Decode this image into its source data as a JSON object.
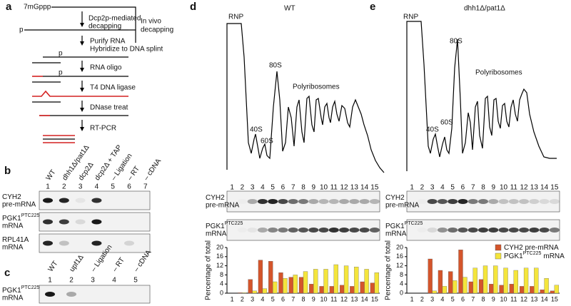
{
  "panel_a": {
    "label": "a",
    "cap": "7mGppp",
    "dcp2_line1": "Dcp2p-mediated",
    "dcp2_line2": "decapping",
    "invivo_line1": "In vivo",
    "invivo_line2": "decapping",
    "phosphates": [
      "p",
      "p",
      "p"
    ],
    "steps": [
      "Purify RNA",
      "Hybridize to DNA splint",
      "RNA oligo",
      "T4 DNA ligase",
      "DNase treat",
      "RT-PCR"
    ]
  },
  "panel_b": {
    "label": "b",
    "columns": [
      "WT",
      "dhh1Δ/pat1Δ",
      "dcp2Δ",
      "dcp2Δ + TAP",
      "– Ligation",
      "– RT",
      "– cDNA"
    ],
    "lanes": [
      "1",
      "2",
      "3",
      "4",
      "5",
      "6",
      "7"
    ],
    "rows": [
      {
        "name": "CYH2",
        "line2": "pre-mRNA"
      },
      {
        "name": "PGK1",
        "sup": "PTC225",
        "line2": "mRNA"
      },
      {
        "name": "RPL41A",
        "line2": "mRNA"
      }
    ]
  },
  "panel_c": {
    "label": "c",
    "columns": [
      "WT",
      "upf1Δ",
      "– Ligation",
      "– RT",
      "– cDNA"
    ],
    "lanes": [
      "1",
      "2",
      "3",
      "4",
      "5"
    ],
    "rows": [
      {
        "name": "PGK1",
        "sup": "PTC225",
        "line2": "mRNA"
      }
    ]
  },
  "chart_data": [
    {
      "type": "bar",
      "panel_label": "d",
      "title": "WT",
      "profile_labels": {
        "rnp": "RNP",
        "s40": "40S",
        "s60": "60S",
        "s80": "80S",
        "poly": "Polyribosomes"
      },
      "lanes": [
        "1",
        "2",
        "3",
        "4",
        "5",
        "6",
        "7",
        "8",
        "9",
        "10",
        "11",
        "12",
        "13",
        "14",
        "15"
      ],
      "gel_rows": [
        {
          "name": "CYH2",
          "line2": "pre-mRNA"
        },
        {
          "name": "PGK1",
          "sup": "PTC225",
          "line2": "mRNA"
        }
      ],
      "ylabel": "Percentage of total",
      "ylim": [
        0,
        20
      ],
      "yticks": [
        0,
        4,
        8,
        12,
        16,
        20
      ],
      "categories": [
        "1",
        "2",
        "3",
        "4",
        "5",
        "6",
        "7",
        "8",
        "9",
        "10",
        "11",
        "12",
        "13",
        "14",
        "15"
      ],
      "series": [
        {
          "color": "#d4552b",
          "values": [
            0,
            0.2,
            6,
            14.5,
            14,
            9,
            7,
            7,
            4,
            3,
            3,
            3.5,
            3,
            5,
            4.5
          ]
        },
        {
          "color": "#f4e53c",
          "values": [
            0,
            0.2,
            1,
            2,
            5,
            6.5,
            8,
            9.5,
            10.5,
            10.5,
            12.5,
            12,
            11.5,
            10.5,
            9
          ]
        }
      ]
    },
    {
      "type": "bar",
      "panel_label": "e",
      "title": "dhh1Δ/pat1Δ",
      "profile_labels": {
        "rnp": "RNP",
        "s40": "40S",
        "s60": "60S",
        "s80": "80S",
        "poly": "Polyribosomes"
      },
      "lanes": [
        "1",
        "2",
        "3",
        "4",
        "5",
        "6",
        "7",
        "8",
        "9",
        "10",
        "11",
        "12",
        "13",
        "14",
        "15"
      ],
      "gel_rows": [
        {
          "name": "CYH2",
          "line2": "pre-mRNA"
        },
        {
          "name": "PGK1",
          "sup": "PTC225",
          "line2": "mRNA"
        }
      ],
      "ylabel": "Percentage of total",
      "ylim": [
        0,
        20
      ],
      "yticks": [
        0,
        4,
        8,
        12,
        16,
        20
      ],
      "categories": [
        "1",
        "2",
        "3",
        "4",
        "5",
        "6",
        "7",
        "8",
        "9",
        "10",
        "11",
        "12",
        "13",
        "14",
        "15"
      ],
      "legend": "top-right",
      "series": [
        {
          "name": "CYH2 pre-mRNA",
          "color": "#d4552b",
          "values": [
            0,
            0,
            15,
            10,
            9.5,
            19,
            5,
            6,
            4,
            3.5,
            4,
            3,
            3,
            1.5,
            1
          ]
        },
        {
          "name": "PGK1",
          "name_sup": "PTC225",
          "name_rest": "mRNA",
          "color": "#f4e53c",
          "values": [
            0,
            0,
            1,
            3,
            5.5,
            7,
            11,
            12,
            12,
            11,
            10,
            11,
            11,
            6.5,
            3.5
          ]
        }
      ]
    }
  ]
}
